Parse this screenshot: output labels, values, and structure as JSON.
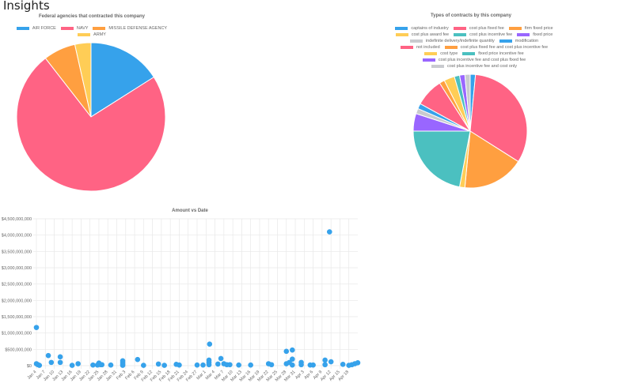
{
  "page": {
    "title": "Insights"
  },
  "chart_data": [
    {
      "type": "pie",
      "title": "Federal agencies that contracted this company",
      "legend_position": "top",
      "categories": [
        "AIR FORCE",
        "NAVY",
        "MISSILE DEFENSE AGENCY",
        "ARMY"
      ],
      "values": [
        16,
        73.5,
        7,
        3.5
      ],
      "colors": [
        "#36a2eb",
        "#ff6384",
        "#ff9f40",
        "#ffcd56"
      ]
    },
    {
      "type": "pie",
      "title": "Types of contracts by this company",
      "legend_position": "top",
      "categories": [
        "captains of industry",
        "cost plus fixed fee",
        "firm fixed price",
        "cost plus award fee",
        "cost plus incentive fee",
        "fixed price",
        "indefinite delivery/indefinite quantity",
        "modification",
        "not included",
        "cost plus fixed fee and cost plus incentive fee",
        "cost type",
        "fixed price incentive fee",
        "cost plus incentive fee and cost plus fixed fee",
        "cost plus incentive fee and cost only"
      ],
      "values": [
        1.5,
        32.5,
        17.5,
        1.5,
        22,
        5,
        1.5,
        1.5,
        8,
        1.5,
        3,
        1.5,
        1.5,
        1.5
      ],
      "colors": [
        "#36a2eb",
        "#ff6384",
        "#ff9f40",
        "#ffcd56",
        "#4bc0c0",
        "#9966ff",
        "#c9cbcf",
        "#36a2eb",
        "#ff6384",
        "#ff9f40",
        "#ffcd56",
        "#4bc0c0",
        "#9966ff",
        "#c9cbcf"
      ]
    },
    {
      "type": "scatter",
      "title": "Amount vs Date",
      "xlabel": "",
      "ylabel": "",
      "ylim": [
        0,
        4500000000
      ],
      "y_ticks": [
        "$4,500,000,000",
        "$4,000,000,000",
        "$3,500,000,000",
        "$3,000,000,000",
        "$2,500,000,000",
        "$2,000,000,000",
        "$1,500,000,000",
        "$1,000,000,000",
        "$500,000,000",
        "$0"
      ],
      "x_ticks": [
        "Jan 4",
        "Jan 7",
        "Jan 10",
        "Jan 13",
        "Jan 16",
        "Jan 19",
        "Jan 22",
        "Jan 25",
        "Jan 28",
        "Jan 31",
        "Feb 3",
        "Feb 6",
        "Feb 9",
        "Feb 12",
        "Feb 15",
        "Feb 18",
        "Feb 21",
        "Feb 24",
        "Feb 27",
        "Mar 1",
        "Mar 4",
        "Mar 7",
        "Mar 10",
        "Mar 13",
        "Mar 16",
        "Mar 19",
        "Mar 22",
        "Mar 25",
        "Mar 28",
        "Mar 31",
        "Apr 3",
        "Apr 6",
        "Apr 9",
        "Apr 12",
        "Apr 15",
        "Apr 18"
      ],
      "grid": true,
      "color": "#36a2eb",
      "points": [
        {
          "day": 0,
          "amount": 1170000000
        },
        {
          "day": 0,
          "amount": 60000000
        },
        {
          "day": 0.5,
          "amount": 30000000
        },
        {
          "day": 1,
          "amount": 10000000
        },
        {
          "day": 4,
          "amount": 310000000
        },
        {
          "day": 5,
          "amount": 100000000
        },
        {
          "day": 8,
          "amount": 270000000
        },
        {
          "day": 8,
          "amount": 100000000
        },
        {
          "day": 12,
          "amount": 10000000
        },
        {
          "day": 14,
          "amount": 60000000
        },
        {
          "day": 19,
          "amount": 20000000
        },
        {
          "day": 20.5,
          "amount": 20000000
        },
        {
          "day": 21,
          "amount": 80000000
        },
        {
          "day": 21.5,
          "amount": 30000000
        },
        {
          "day": 22,
          "amount": 30000000
        },
        {
          "day": 25,
          "amount": 20000000
        },
        {
          "day": 29,
          "amount": 150000000
        },
        {
          "day": 29,
          "amount": 100000000
        },
        {
          "day": 29,
          "amount": 50000000
        },
        {
          "day": 29,
          "amount": 10000000
        },
        {
          "day": 34,
          "amount": 190000000
        },
        {
          "day": 36,
          "amount": 10000000
        },
        {
          "day": 41,
          "amount": 50000000
        },
        {
          "day": 43,
          "amount": 10000000
        },
        {
          "day": 47,
          "amount": 40000000
        },
        {
          "day": 48,
          "amount": 20000000
        },
        {
          "day": 54,
          "amount": 20000000
        },
        {
          "day": 56,
          "amount": 20000000
        },
        {
          "day": 58,
          "amount": 170000000
        },
        {
          "day": 58,
          "amount": 100000000
        },
        {
          "day": 58,
          "amount": 30000000
        },
        {
          "day": 58.2,
          "amount": 660000000
        },
        {
          "day": 61,
          "amount": 50000000
        },
        {
          "day": 62,
          "amount": 220000000
        },
        {
          "day": 63,
          "amount": 60000000
        },
        {
          "day": 64,
          "amount": 30000000
        },
        {
          "day": 65,
          "amount": 30000000
        },
        {
          "day": 68,
          "amount": 20000000
        },
        {
          "day": 72,
          "amount": 20000000
        },
        {
          "day": 78,
          "amount": 60000000
        },
        {
          "day": 79,
          "amount": 30000000
        },
        {
          "day": 84,
          "amount": 440000000
        },
        {
          "day": 84,
          "amount": 60000000
        },
        {
          "day": 85,
          "amount": 100000000
        },
        {
          "day": 86,
          "amount": 480000000
        },
        {
          "day": 86,
          "amount": 200000000
        },
        {
          "day": 86,
          "amount": 20000000
        },
        {
          "day": 89,
          "amount": 100000000
        },
        {
          "day": 89,
          "amount": 30000000
        },
        {
          "day": 92,
          "amount": 20000000
        },
        {
          "day": 93,
          "amount": 20000000
        },
        {
          "day": 97,
          "amount": 170000000
        },
        {
          "day": 97,
          "amount": 30000000
        },
        {
          "day": 98.5,
          "amount": 4100000000
        },
        {
          "day": 99,
          "amount": 120000000
        },
        {
          "day": 103,
          "amount": 40000000
        },
        {
          "day": 105,
          "amount": 10000000
        },
        {
          "day": 106,
          "amount": 30000000
        },
        {
          "day": 107,
          "amount": 60000000
        },
        {
          "day": 108,
          "amount": 90000000
        }
      ]
    }
  ]
}
